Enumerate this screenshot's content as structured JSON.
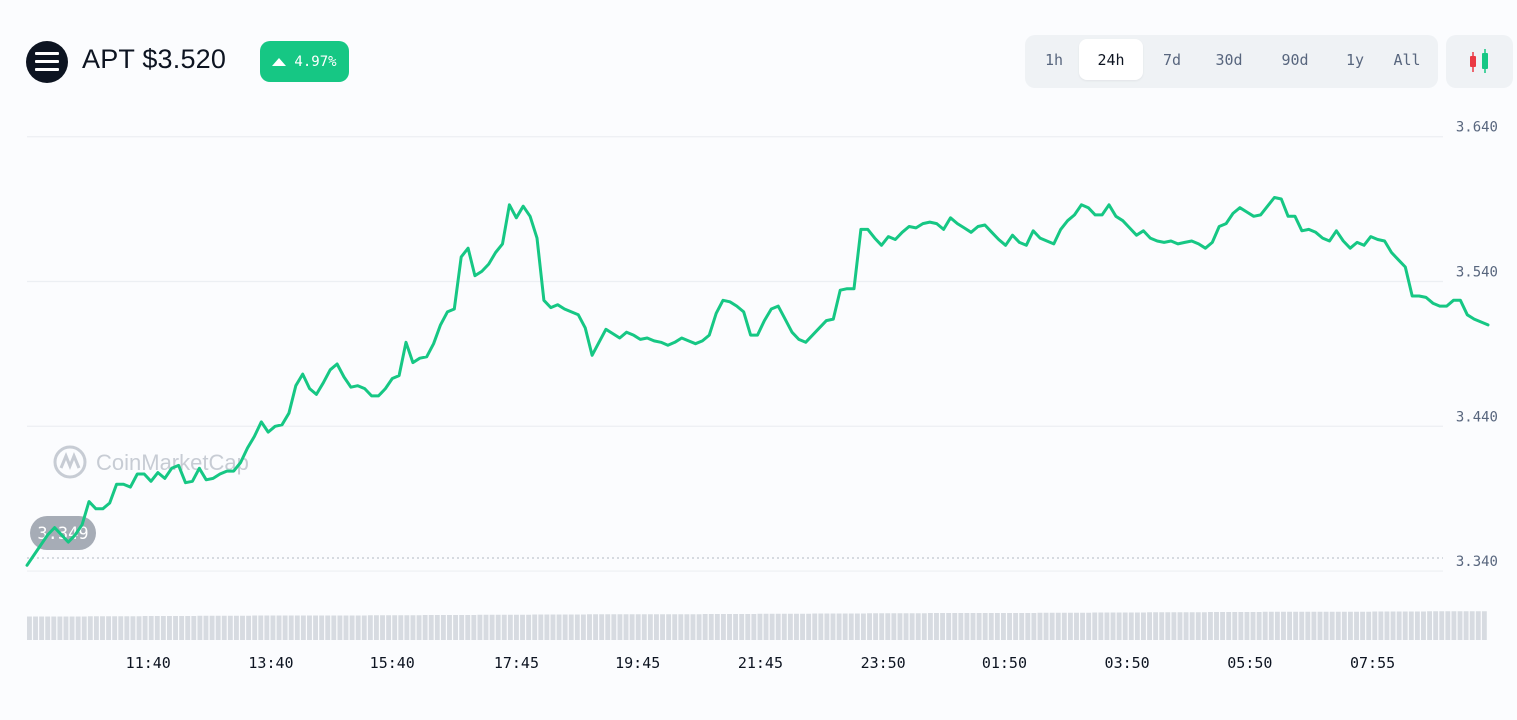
{
  "header": {
    "coin_icon": "aptos-logo-icon",
    "title": "APT $3.520",
    "change_percent": "4.97%",
    "change_direction_icon": "triangle-up-icon",
    "change_color": "#16c784"
  },
  "range_selector": {
    "options": [
      "1h",
      "24h",
      "7d",
      "30d",
      "90d",
      "1y",
      "All"
    ],
    "selected": "24h",
    "chart_type_icon": "candlestick-icon"
  },
  "watermark": "CoinMarketCap",
  "chart_data": {
    "type": "line",
    "title": "",
    "xlabel": "",
    "ylabel": "",
    "line_color": "#16c784",
    "ylim": [
      3.32,
      3.655
    ],
    "y_ticks": [
      3.34,
      3.44,
      3.54,
      3.64
    ],
    "y_tick_labels": [
      "3.340",
      "3.440",
      "3.540",
      "3.640"
    ],
    "x_tick_labels": [
      "11:40",
      "13:40",
      "15:40",
      "17:45",
      "19:45",
      "21:45",
      "23:50",
      "01:50",
      "03:50",
      "05:50",
      "07:55"
    ],
    "x_tick_positions": [
      0.083,
      0.167,
      0.25,
      0.335,
      0.418,
      0.502,
      0.586,
      0.669,
      0.753,
      0.837,
      0.921
    ],
    "open_price_label": "3.349",
    "open_price": 3.349,
    "grid": "horizontal",
    "series": [
      {
        "values": [
          3.344,
          3.351,
          3.358,
          3.365,
          3.37,
          3.365,
          3.36,
          3.365,
          3.372,
          3.388,
          3.383,
          3.383,
          3.387,
          3.4,
          3.4,
          3.398,
          3.407,
          3.407,
          3.402,
          3.408,
          3.404,
          3.411,
          3.413,
          3.401,
          3.402,
          3.411,
          3.403,
          3.404,
          3.407,
          3.409,
          3.409,
          3.415,
          3.425,
          3.433,
          3.443,
          3.436,
          3.44,
          3.441,
          3.449,
          3.468,
          3.476,
          3.466,
          3.462,
          3.47,
          3.479,
          3.483,
          3.474,
          3.467,
          3.468,
          3.466,
          3.461,
          3.461,
          3.466,
          3.473,
          3.475,
          3.498,
          3.484,
          3.487,
          3.488,
          3.497,
          3.51,
          3.519,
          3.521,
          3.557,
          3.563,
          3.544,
          3.547,
          3.552,
          3.56,
          3.566,
          3.593,
          3.584,
          3.592,
          3.585,
          3.57,
          3.527,
          3.522,
          3.524,
          3.521,
          3.519,
          3.517,
          3.508,
          3.489,
          3.498,
          3.507,
          3.504,
          3.501,
          3.505,
          3.503,
          3.5,
          3.501,
          3.499,
          3.498,
          3.496,
          3.498,
          3.501,
          3.499,
          3.497,
          3.499,
          3.503,
          3.518,
          3.527,
          3.526,
          3.523,
          3.519,
          3.503,
          3.503,
          3.513,
          3.521,
          3.523,
          3.514,
          3.505,
          3.5,
          3.498,
          3.503,
          3.508,
          3.513,
          3.514,
          3.534,
          3.535,
          3.535,
          3.576,
          3.576,
          3.57,
          3.565,
          3.571,
          3.569,
          3.574,
          3.578,
          3.577,
          3.58,
          3.581,
          3.58,
          3.576,
          3.584,
          3.58,
          3.577,
          3.574,
          3.578,
          3.579,
          3.574,
          3.569,
          3.565,
          3.572,
          3.567,
          3.565,
          3.575,
          3.57,
          3.568,
          3.566,
          3.576,
          3.582,
          3.586,
          3.593,
          3.591,
          3.586,
          3.586,
          3.593,
          3.585,
          3.582,
          3.577,
          3.572,
          3.575,
          3.57,
          3.568,
          3.567,
          3.568,
          3.566,
          3.567,
          3.568,
          3.566,
          3.563,
          3.567,
          3.578,
          3.58,
          3.587,
          3.591,
          3.588,
          3.585,
          3.586,
          3.592,
          3.598,
          3.597,
          3.585,
          3.585,
          3.575,
          3.576,
          3.574,
          3.57,
          3.568,
          3.575,
          3.568,
          3.563,
          3.567,
          3.565,
          3.571,
          3.569,
          3.568,
          3.56,
          3.555,
          3.55,
          3.53,
          3.53,
          3.529,
          3.525,
          3.523,
          3.523,
          3.527,
          3.527,
          3.517,
          3.514,
          3.512,
          3.51
        ]
      }
    ],
    "volume_series": {
      "values": [
        0.22,
        0.23,
        0.24,
        0.25,
        0.26,
        0.26,
        0.27,
        0.28,
        0.29,
        0.3,
        0.31,
        0.31,
        0.32,
        0.33,
        0.34,
        0.35,
        0.36,
        0.36,
        0.37,
        0.38,
        0.39,
        0.4,
        0.41,
        0.41,
        0.42,
        0.43
      ]
    }
  }
}
